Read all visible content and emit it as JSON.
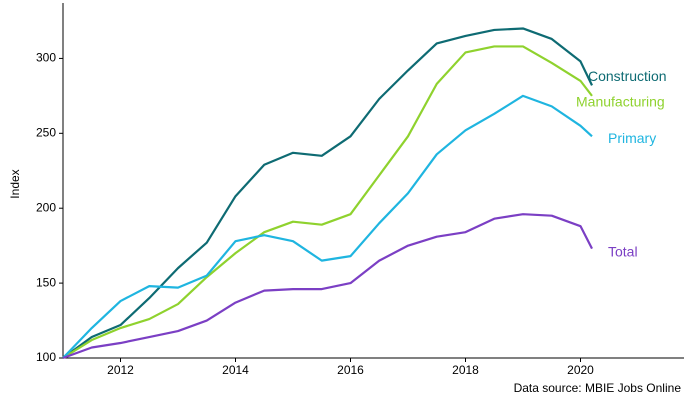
{
  "chart_data": {
    "type": "line",
    "y_label": "Index",
    "source": "Data source: MBIE Jobs Online",
    "x": [
      2011,
      2011.5,
      2012,
      2012.5,
      2013,
      2013.5,
      2014,
      2014.5,
      2015,
      2015.5,
      2016,
      2016.5,
      2017,
      2017.5,
      2018,
      2018.5,
      2019,
      2019.5,
      2020,
      2020.2
    ],
    "series": [
      {
        "name": "Construction",
        "color": "#0e6b73",
        "values": [
          100,
          114,
          122,
          140,
          160,
          177,
          208,
          229,
          237,
          235,
          248,
          273,
          292,
          310,
          315,
          319,
          320,
          313,
          298,
          282
        ]
      },
      {
        "name": "Manufacturing",
        "color": "#8fd22e",
        "values": [
          100,
          112,
          120,
          126,
          136,
          154,
          170,
          184,
          191,
          189,
          196,
          222,
          248,
          283,
          304,
          308,
          308,
          297,
          285,
          275
        ]
      },
      {
        "name": "Primary",
        "color": "#1fb5e0",
        "values": [
          100,
          120,
          138,
          148,
          147,
          155,
          178,
          182,
          178,
          165,
          168,
          190,
          210,
          236,
          252,
          263,
          275,
          268,
          255,
          248
        ]
      },
      {
        "name": "Total",
        "color": "#7b3fc4",
        "values": [
          100,
          107,
          110,
          114,
          118,
          125,
          137,
          145,
          146,
          146,
          150,
          165,
          175,
          181,
          184,
          193,
          196,
          195,
          188,
          173
        ]
      }
    ],
    "xlim": [
      2011,
      2021.8
    ],
    "xticks": [
      2012,
      2014,
      2016,
      2018,
      2020
    ],
    "ylim": [
      100,
      337
    ],
    "yticks": [
      100,
      150,
      200,
      250,
      300
    ],
    "grid": false
  }
}
